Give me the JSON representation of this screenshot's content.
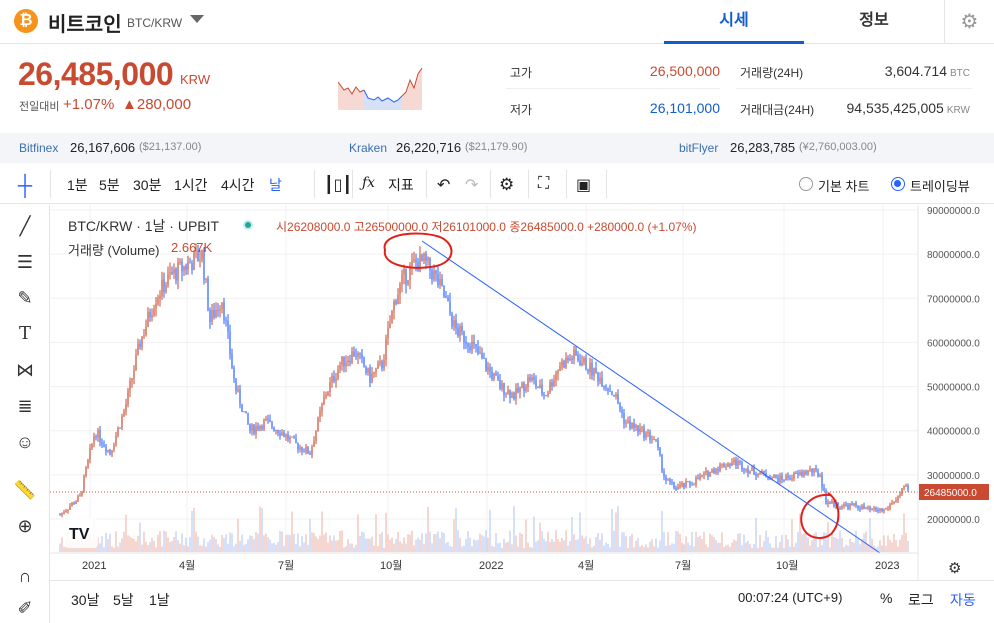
{
  "header": {
    "coin_icon": "₿",
    "coin_name": "비트코인",
    "pair": "BTC/KRW",
    "tab_price": "시세",
    "tab_info": "정보",
    "settings_icon": "gear-icon"
  },
  "price": {
    "current": "26,485,000",
    "unit": "KRW",
    "change_label": "전일대비",
    "change_pct": "+1.07%",
    "change_amt": "▲280,000"
  },
  "stats": {
    "high_label": "고가",
    "high_value": "26,500,000",
    "low_label": "저가",
    "low_value": "26,101,000",
    "volume_label": "거래량(24H)",
    "volume_value": "3,604.714",
    "volume_unit": "BTC",
    "amount_label": "거래대금(24H)",
    "amount_value": "94,535,425,005",
    "amount_unit": "KRW"
  },
  "exchanges": [
    {
      "name": "Bitfinex",
      "krw": "26,167,606",
      "usd": "($21,137.00)"
    },
    {
      "name": "Kraken",
      "krw": "26,220,716",
      "usd": "($21,179.90)"
    },
    {
      "name": "bitFlyer",
      "krw": "26,283,785",
      "usd": "(¥2,760,003.00)"
    }
  ],
  "toolbar": {
    "interval_1m": "1분",
    "interval_5m": "5분",
    "interval_30m": "30분",
    "interval_1h": "1시간",
    "interval_4h": "4시간",
    "interval_day": "날",
    "indicator": "지표",
    "basic_chart": "기본 차트",
    "tradingview": "트레이딩뷰"
  },
  "chart": {
    "legend_title": "BTC/KRW · 1날 · UPBIT",
    "ohlc": "시26208000.0 고26500000.0 저26101000.0 종26485000.0 +280000.0 (+1.07%)",
    "volume_label": "거래량 (Volume)",
    "volume_value": "2.667K",
    "price_tag": "26485000.0",
    "y_ticks": [
      "90000000.0",
      "80000000.0",
      "70000000.0",
      "60000000.0",
      "50000000.0",
      "40000000.0",
      "30000000.0",
      "20000000.0"
    ],
    "x_ticks": [
      "2021",
      "4월",
      "7월",
      "10월",
      "2022",
      "4월",
      "7월",
      "10월",
      "2023"
    ]
  },
  "bottom": {
    "range_30d": "30날",
    "range_5d": "5날",
    "range_1d": "1날",
    "clock": "00:07:24 (UTC+9)",
    "percent": "%",
    "log": "로그",
    "auto": "자동"
  },
  "colors": {
    "up": "#c84a31",
    "down": "#2962ff",
    "accent": "#115dcb"
  }
}
